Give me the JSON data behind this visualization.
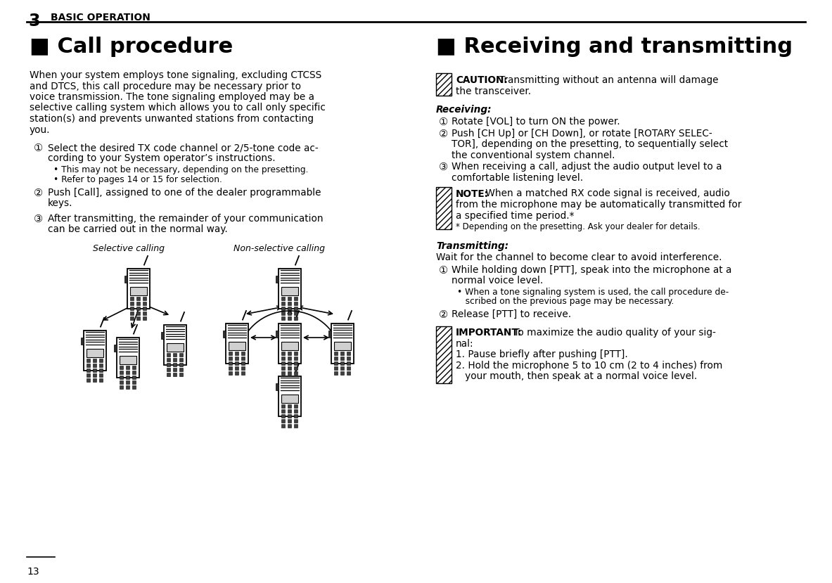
{
  "bg_color": "#ffffff",
  "title_left": "■ Call procedure",
  "title_right": "■ Receiving and transmitting",
  "header_number": "3",
  "header_text": "BASIC OPERATION",
  "page_number": "13",
  "left_body": "When your system employs tone signaling, excluding CTCSS\nand DTCS, this call procedure may be necessary prior to\nvoice transmission. The tone signaling employed may be a\nselective calling system which allows you to call only specific\nstation(s) and prevents unwanted stations from contacting\nyou.",
  "left_steps": [
    {
      "marker": "①",
      "text": "Select the desired TX code channel or 2/5-tone code ac-\ncording to your System operator’s instructions.",
      "bullets": [
        "• This may not be necessary, depending on the presetting.",
        "• Refer to pages 14 or 15 for selection."
      ]
    },
    {
      "marker": "②",
      "text": "Push [Call], assigned to one of the dealer programmable\nkeys.",
      "bullets": []
    },
    {
      "marker": "③",
      "text": "After transmitting, the remainder of your communication\ncan be carried out in the normal way.",
      "bullets": []
    }
  ],
  "selective_label": "Selective calling",
  "nonselective_label": "Non-selective calling",
  "caution_label": "CAUTION:",
  "caution_lines": [
    "Transmitting without an antenna will damage",
    "the transceiver."
  ],
  "receiving_header": "Receiving:",
  "receiving_steps": [
    {
      "marker": "①",
      "text": "Rotate [VOL] to turn ON the power.",
      "indent_lines": 1
    },
    {
      "marker": "②",
      "text": "Push [CH Up] or [CH Down], or rotate [ROTARY SELEC-\nTOR], depending on the presetting, to sequentially select\nthe conventional system channel.",
      "indent_lines": 3
    },
    {
      "marker": "③",
      "text": "When receiving a call, adjust the audio output level to a\ncomfortable listening level.",
      "indent_lines": 2
    }
  ],
  "note_label": "NOTE:",
  "note_lines": [
    " When a matched RX code signal is received, audio",
    "from the microphone may be automatically transmitted for",
    "a specified time period.*",
    "* Depending on the presetting. Ask your dealer for details."
  ],
  "transmitting_header": "Transmitting:",
  "transmitting_intro": "Wait for the channel to become clear to avoid interference.",
  "transmitting_steps": [
    {
      "marker": "①",
      "text": "While holding down [PTT], speak into the microphone at a\nnormal voice level.",
      "bullets": [
        "• When a tone signaling system is used, the call procedure de-",
        "   scribed on the previous page may be necessary."
      ]
    },
    {
      "marker": "②",
      "text": "Release [PTT] to receive.",
      "bullets": []
    }
  ],
  "important_label": "IMPORTANT:",
  "important_lines": [
    " To maximize the audio quality of your sig-",
    "nal:",
    "1. Pause briefly after pushing [PTT].",
    "2. Hold the microphone 5 to 10 cm (2 to 4 inches) from",
    "   your mouth, then speak at a normal voice level."
  ]
}
